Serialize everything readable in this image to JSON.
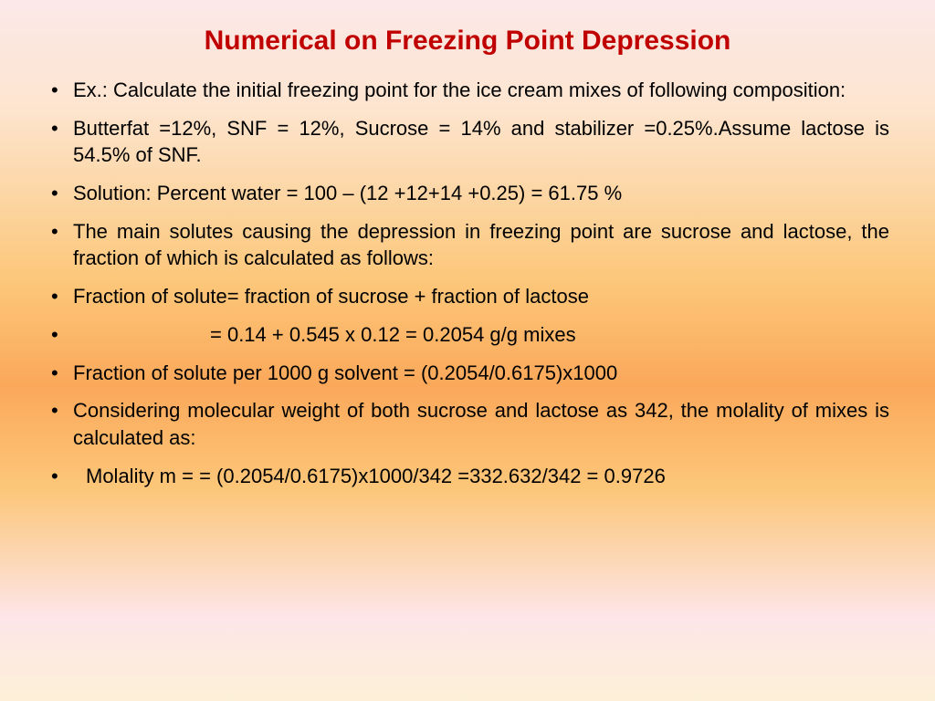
{
  "title": {
    "text": "Numerical on Freezing Point Depression",
    "color": "#c00000",
    "fontsize": 30
  },
  "body": {
    "color": "#000000",
    "fontsize": 22,
    "bullet_color": "#000000"
  },
  "bullets": [
    "Ex.: Calculate the initial freezing point for the ice cream mixes of following composition:",
    "Butterfat =12%, SNF = 12%, Sucrose = 14% and stabilizer =0.25%.Assume lactose is 54.5% of SNF.",
    "Solution: Percent water = 100 – (12 +12+14 +0.25) = 61.75 %",
    "The main solutes causing the depression in freezing point are sucrose and lactose, the fraction of which is calculated as follows:",
    "Fraction of solute= fraction of sucrose + fraction of lactose",
    "= 0.14 + 0.545 x 0.12 = 0.2054 g/g mixes",
    "Fraction of solute per 1000 g solvent = (0.2054/0.6175)x1000",
    "Considering molecular weight of both sucrose and lactose as 342, the molality of mixes is calculated as:",
    "Molality m = = (0.2054/0.6175)x1000/342 =332.632/342 = 0.9726"
  ]
}
